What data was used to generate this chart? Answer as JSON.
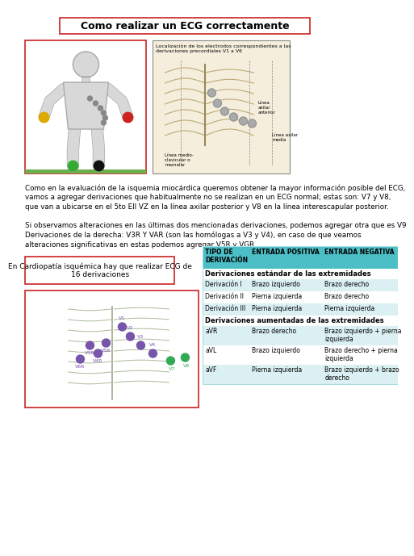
{
  "title": "Como realizar un ECG correctamente",
  "bg_color": "#ffffff",
  "title_box_color": "#cc2222",
  "title_font_size": 9,
  "para1": "Como en la evaluación de la isquemia miocárdica queremos obtener la mayor información posible del ECG,\nvamos a agregar derivaciones que habitualmente no se realizan en un ECG normal; estas son: V7 y V8,\nque van a ubicarse en el 5to EII VZ en la línea axilar posterior y V8 en la línea interescapular posterior.",
  "para2": "Si observamos alteraciones en las últimas dos mencionadas derivaciones, podemos agregar otra que es V9\nDerivaciones de la derecha: V3R Y VAR (son las homólogas a V3 y V4), en caso de que veamos\nalteraciones significativas en estas podemos agregar V5R y VGR.",
  "left_box_text": "En Cardiopatía isquémica hay que realizar ECG de\n16 derivaciones",
  "left_box_border": "#cc2222",
  "table_header_bg": "#4bbec6",
  "table_row_bg1": "#daf0f2",
  "table_row_bg2": "#ffffff",
  "table_border": "#aadde0",
  "table_columns": [
    "TIPO DE\nDERIVACIÓN",
    "ENTRADA POSITIVA",
    "ENTRADA NEGATIVA"
  ],
  "table_section1": "Derivaciones estándar de las extremidades",
  "table_section2": "Derivaciones aumentadas de las extremidades",
  "table_rows_s1": [
    [
      "Derivación I",
      "Brazo izquierdo",
      "Brazo derecho"
    ],
    [
      "Derivación II",
      "Pierna izquierda",
      "Brazo derecho"
    ],
    [
      "Derivación III",
      "Pierna izquierda",
      "Pierna izquierda"
    ]
  ],
  "table_rows_s2": [
    [
      "aVR",
      "Brazo derecho",
      "Brazo izquierdo + pierna\nizquierda"
    ],
    [
      "aVL",
      "Brazo izquierdo",
      "Brazo derecho + pierna\nizquierda"
    ],
    [
      "aVF",
      "Pierna izquierda",
      "Brazo izquierdo + brazo\nderecho"
    ]
  ],
  "img1_border": "#cc2222",
  "img1_bottom_border": "#6ab04c",
  "img2_border": "#888888",
  "img2_title": "Localización de los electrodos correspondientes a las\nderivaciones precordiales V1 a V6",
  "body_color": "#d8d8d8",
  "body_outline": "#aaaaaa",
  "electrode_red": "#cc2222",
  "electrode_yellow": "#ddaa00",
  "electrode_black": "#111111",
  "electrode_green": "#33aa33",
  "chest_v_color": "#888888",
  "ribcage_color": "#ccbb88",
  "ribcage_bg": "#f5eedd",
  "bottom_chest_border": "#cc2222",
  "v1v2_color": "#7755aa",
  "v3v4_color": "#7755aa",
  "v5v6v7_color": "#33aa55",
  "v8_color": "#33aa55",
  "vr_color": "#7755aa"
}
